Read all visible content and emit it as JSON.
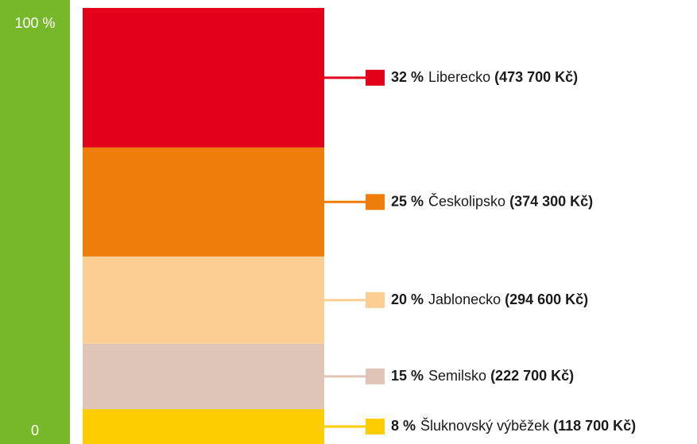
{
  "chart_data": {
    "type": "stacked_bar",
    "ylim": [
      0,
      100
    ],
    "yticks": [
      0,
      {
        "value": 100,
        "label": "100 %"
      }
    ],
    "axis_color": "#76b82a",
    "series": [
      {
        "name": "Liberecko",
        "color": "#e2001a",
        "values": [
          32
        ],
        "value_labels": [
          "32 %"
        ],
        "amount_labels": [
          "(473 700 Kč)"
        ]
      },
      {
        "name": "Českolipsko",
        "color": "#ef7d0a",
        "values": [
          25
        ],
        "value_labels": [
          "25 %"
        ],
        "amount_labels": [
          "(374 300 Kč)"
        ]
      },
      {
        "name": "Jablonecko",
        "color": "#fbcf94",
        "values": [
          20
        ],
        "value_labels": [
          "20 %"
        ],
        "amount_labels": [
          "(294 600 Kč)"
        ]
      },
      {
        "name": "Semilsko",
        "color": "#dfc5b8",
        "values": [
          15
        ],
        "value_labels": [
          "15 %"
        ],
        "amount_labels": [
          "(222 700 Kč)"
        ]
      },
      {
        "name": "Šluknovský výběžek",
        "color": "#fdcc00",
        "values": [
          8
        ],
        "value_labels": [
          "8 %"
        ],
        "amount_labels": [
          "(118 700 Kč)"
        ]
      }
    ]
  }
}
